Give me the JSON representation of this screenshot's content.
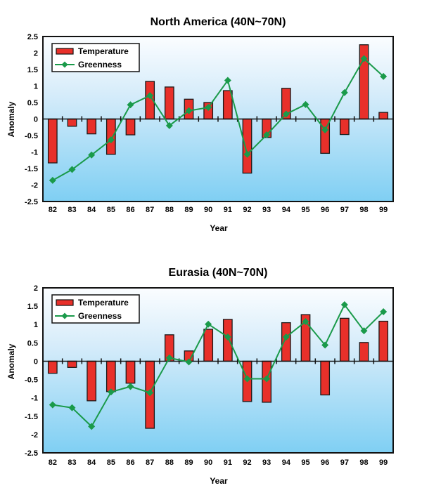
{
  "chart_data": [
    {
      "type": "bar",
      "title": "North America (40N~70N)",
      "xlabel": "Year",
      "ylabel": "Anomaly",
      "ylim": [
        -2.5,
        2.5
      ],
      "yticks": [
        "2.5",
        "2",
        "1.5",
        "1",
        "0.5",
        "0",
        "-0.5",
        "-1",
        "-1.5",
        "-2",
        "-2.5"
      ],
      "ytick_values": [
        2.5,
        2,
        1.5,
        1,
        0.5,
        0,
        -0.5,
        -1,
        -1.5,
        -2,
        -2.5
      ],
      "categories": [
        "82",
        "83",
        "84",
        "85",
        "86",
        "87",
        "88",
        "89",
        "90",
        "91",
        "92",
        "93",
        "94",
        "95",
        "96",
        "97",
        "98",
        "99"
      ],
      "legend_position": "top-left",
      "series": [
        {
          "name": "Temperature",
          "kind": "bar",
          "color": "#e8302a",
          "values": [
            -1.33,
            -0.22,
            -0.45,
            -1.07,
            -0.48,
            1.14,
            0.97,
            0.6,
            0.5,
            0.86,
            -1.64,
            -0.56,
            0.93,
            0,
            -1.04,
            -0.47,
            2.25,
            0.2
          ]
        },
        {
          "name": "Greenness",
          "kind": "line",
          "color": "#1a9a4a",
          "values": [
            -1.86,
            -1.53,
            -1.09,
            -0.63,
            0.43,
            0.71,
            -0.2,
            0.25,
            0.35,
            1.17,
            -1.07,
            -0.48,
            0.15,
            0.44,
            -0.33,
            0.8,
            1.83,
            1.29
          ]
        }
      ]
    },
    {
      "type": "bar",
      "title": "Eurasia (40N~70N)",
      "xlabel": "Year",
      "ylabel": "Anomaly",
      "ylim": [
        -2.5,
        2
      ],
      "yticks": [
        "2",
        "1.5",
        "1",
        "0.5",
        "0",
        "-0.5",
        "-1",
        "-1.5",
        "-2",
        "-2.5"
      ],
      "ytick_values": [
        2,
        1.5,
        1,
        0.5,
        0,
        -0.5,
        -1,
        -1.5,
        -2,
        -2.5
      ],
      "categories": [
        "82",
        "83",
        "84",
        "85",
        "86",
        "87",
        "88",
        "89",
        "90",
        "91",
        "92",
        "93",
        "94",
        "95",
        "96",
        "97",
        "98",
        "99"
      ],
      "legend_position": "top-left",
      "series": [
        {
          "name": "Temperature",
          "kind": "bar",
          "color": "#e8302a",
          "values": [
            -0.33,
            -0.17,
            -1.08,
            -0.83,
            -0.6,
            -1.83,
            0.72,
            0.28,
            0.87,
            1.14,
            -1.1,
            -1.12,
            1.05,
            1.27,
            -0.92,
            1.17,
            0.51,
            1.09
          ]
        },
        {
          "name": "Greenness",
          "kind": "line",
          "color": "#1a9a4a",
          "values": [
            -1.19,
            -1.27,
            -1.78,
            -0.84,
            -0.69,
            -0.86,
            0.09,
            -0.02,
            1.01,
            0.66,
            -0.48,
            -0.48,
            0.66,
            1.08,
            0.44,
            1.54,
            0.83,
            1.35
          ]
        }
      ]
    }
  ]
}
